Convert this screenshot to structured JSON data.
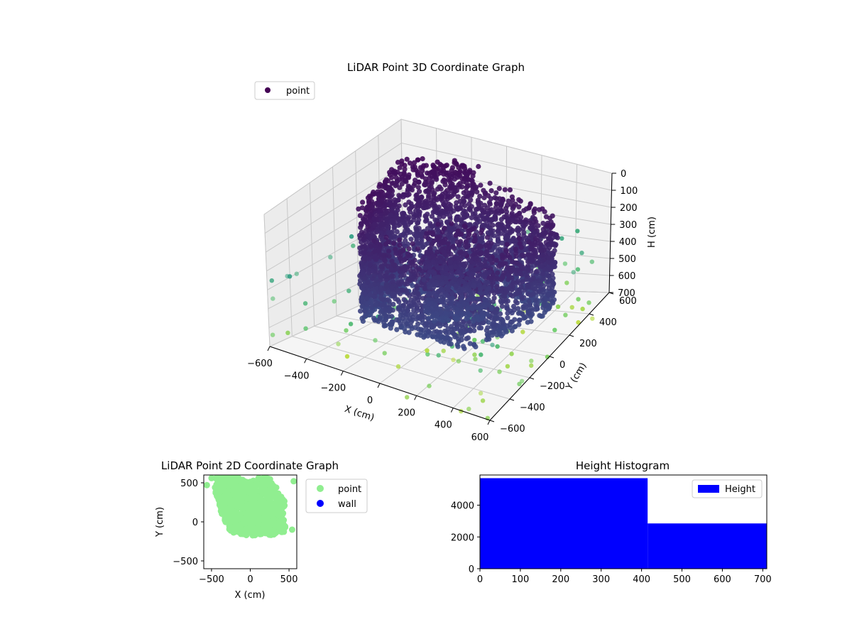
{
  "chart_data": [
    {
      "type": "scatter3d",
      "title": "LiDAR Point 3D Coordinate Graph",
      "xlabel": "X (cm)",
      "ylabel": "Y (cm)",
      "zlabel": "H (cm)",
      "xlim": [
        -600,
        600
      ],
      "ylim": [
        -600,
        600
      ],
      "zlim": [
        0,
        700
      ],
      "z_inverted": true,
      "x_ticks": [
        "−600",
        "−400",
        "−200",
        "0",
        "200",
        "400",
        "600"
      ],
      "y_ticks": [
        "−600",
        "−400",
        "−200",
        "0",
        "200",
        "400",
        "600"
      ],
      "z_ticks": [
        "0",
        "100",
        "200",
        "300",
        "400",
        "500",
        "600",
        "700"
      ],
      "legend": [
        {
          "name": "point",
          "color": "#440154"
        }
      ],
      "legend_position": "upper-left",
      "grid": true,
      "colormap": "viridis"
    },
    {
      "type": "scatter",
      "title": "LiDAR Point 2D Coordinate Graph",
      "xlabel": "X (cm)",
      "ylabel": "Y (cm)",
      "xlim": [
        -600,
        600
      ],
      "ylim": [
        -600,
        600
      ],
      "x_ticks": [
        "−500",
        "0",
        "500"
      ],
      "y_ticks": [
        "−500",
        "0",
        "500"
      ],
      "legend": [
        {
          "name": "point",
          "color": "#90ee90"
        },
        {
          "name": "wall",
          "color": "#0000ff"
        }
      ],
      "legend_position": "outside-right",
      "grid": false
    },
    {
      "type": "bar",
      "title": "Height Histogram",
      "legend": [
        {
          "name": "Height",
          "color": "#0000ff"
        }
      ],
      "legend_position": "top-right",
      "xlim": [
        0,
        710
      ],
      "ylim": [
        0,
        5900
      ],
      "x_ticks": [
        "0",
        "100",
        "200",
        "300",
        "400",
        "500",
        "600",
        "700"
      ],
      "y_ticks": [
        "0",
        "2000",
        "4000"
      ],
      "bins": [
        {
          "x0": 0,
          "x1": 415,
          "value": 5700
        },
        {
          "x0": 415,
          "x1": 710,
          "value": 2850
        }
      ],
      "grid": false
    }
  ]
}
